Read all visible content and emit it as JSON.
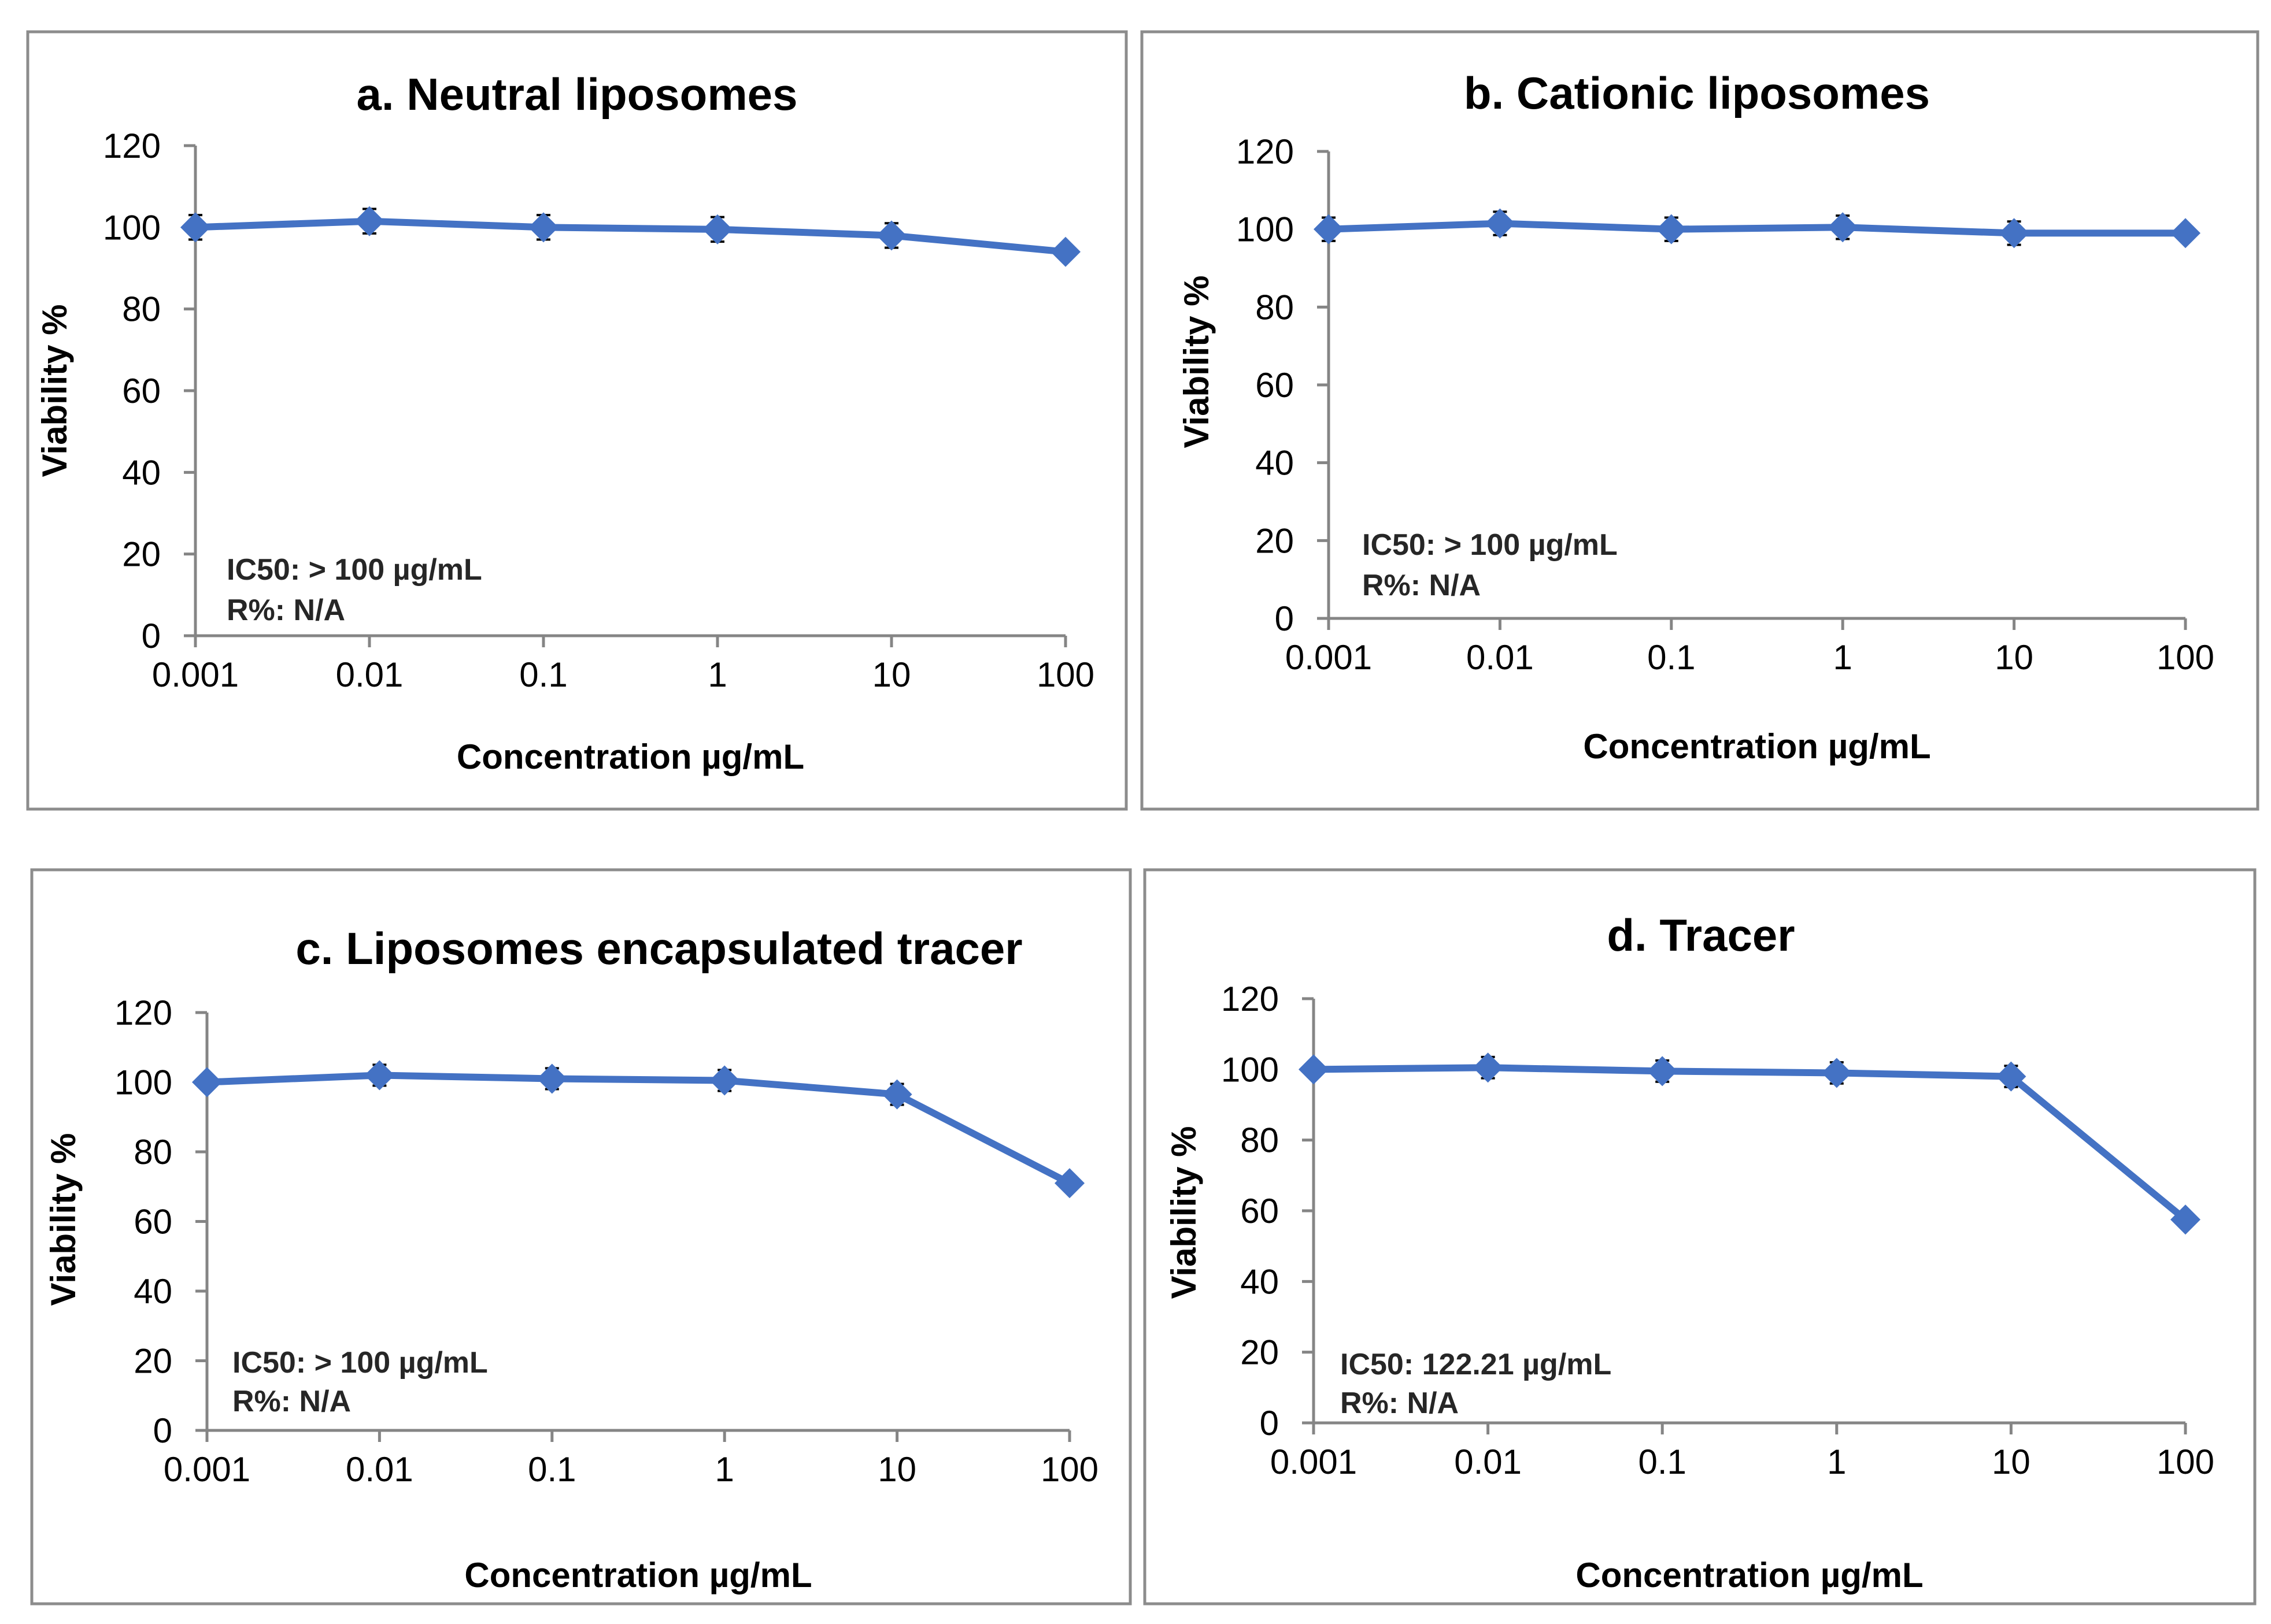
{
  "style": {
    "series_color": "#4472C4",
    "frame_color": "#8C8C8C",
    "axis_color": "#858585"
  },
  "chart_data": [
    {
      "type": "line",
      "title": "a. Neutral liposomes",
      "xlabel": "Concentration µg/mL",
      "ylabel": "Viability %",
      "x_scale": "log",
      "x": [
        0.001,
        0.01,
        0.1,
        1,
        10,
        100
      ],
      "x_tick_labels": [
        "0.001",
        "0.01",
        "0.1",
        "1",
        "10",
        "100"
      ],
      "ylim": [
        0,
        120
      ],
      "y_ticks": [
        0,
        20,
        40,
        60,
        80,
        100,
        120
      ],
      "series": [
        {
          "values": [
            100,
            101.5,
            100,
            99.5,
            98,
            94
          ],
          "error": [
            3,
            3,
            3,
            3,
            3,
            1
          ]
        }
      ],
      "annotations": [
        "IC50: > 100 µg/mL",
        "R%: N/A"
      ],
      "grid": false,
      "legend": "none",
      "marker": "diamond"
    },
    {
      "type": "line",
      "title": "b. Cationic liposomes",
      "xlabel": "Concentration µg/mL",
      "ylabel": "Viability %",
      "x_scale": "log",
      "x": [
        0.001,
        0.01,
        0.1,
        1,
        10,
        100
      ],
      "x_tick_labels": [
        "0.001",
        "0.01",
        "0.1",
        "1",
        "10",
        "100"
      ],
      "ylim": [
        0,
        120
      ],
      "y_ticks": [
        0,
        20,
        40,
        60,
        80,
        100,
        120
      ],
      "series": [
        {
          "values": [
            100,
            101.5,
            100,
            100.5,
            99,
            99
          ],
          "error": [
            3,
            3,
            3,
            3,
            3,
            1
          ]
        }
      ],
      "annotations": [
        "IC50: > 100 µg/mL",
        "R%: N/A"
      ],
      "grid": false,
      "legend": "none",
      "marker": "diamond"
    },
    {
      "type": "line",
      "title": "c. Liposomes encapsulated tracer",
      "xlabel": "Concentration µg/mL",
      "ylabel": "Viability %",
      "x_scale": "log",
      "x": [
        0.001,
        0.01,
        0.1,
        1,
        10,
        100
      ],
      "x_tick_labels": [
        "0.001",
        "0.01",
        "0.1",
        "1",
        "10",
        "100"
      ],
      "ylim": [
        0,
        120
      ],
      "y_ticks": [
        0,
        20,
        40,
        60,
        80,
        100,
        120
      ],
      "series": [
        {
          "values": [
            100,
            102,
            101,
            100.5,
            96.5,
            71
          ],
          "error": [
            1,
            3,
            3,
            3,
            3,
            1
          ]
        }
      ],
      "annotations": [
        "IC50: > 100 µg/mL",
        "R%: N/A"
      ],
      "grid": false,
      "legend": "none",
      "marker": "diamond"
    },
    {
      "type": "line",
      "title": "d. Tracer",
      "xlabel": "Concentration µg/mL",
      "ylabel": "Viability %",
      "x_scale": "log",
      "x": [
        0.001,
        0.01,
        0.1,
        1,
        10,
        100
      ],
      "x_tick_labels": [
        "0.001",
        "0.01",
        "0.1",
        "1",
        "10",
        "100"
      ],
      "ylim": [
        0,
        120
      ],
      "y_ticks": [
        0,
        20,
        40,
        60,
        80,
        100,
        120
      ],
      "series": [
        {
          "values": [
            100,
            100.5,
            99.5,
            99,
            98,
            57.5
          ],
          "error": [
            2,
            3,
            3,
            3,
            3,
            1
          ]
        }
      ],
      "annotations": [
        "IC50: 122.21 µg/mL",
        "R%: N/A"
      ],
      "grid": false,
      "legend": "none",
      "marker": "diamond"
    }
  ]
}
